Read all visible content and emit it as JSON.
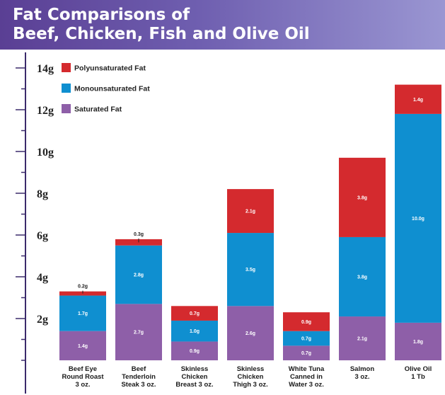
{
  "title_line1": "Fat Comparisons of",
  "title_line2": "Beef, Chicken, Fish and Olive Oil",
  "chart_data": {
    "type": "bar",
    "stacked": true,
    "ylim": [
      0,
      14
    ],
    "yticks": [
      "2g",
      "4g",
      "6g",
      "8g",
      "10g",
      "12g",
      "14g"
    ],
    "categories": [
      [
        "Beef Eye",
        "Round Roast",
        "3 oz."
      ],
      [
        "Beef",
        "Tenderloin",
        "Steak 3 oz."
      ],
      [
        "Skinless",
        "Chicken",
        "Breast 3 oz."
      ],
      [
        "Skinless",
        "Chicken",
        "Thigh 3 oz."
      ],
      [
        "White Tuna",
        "Canned in",
        "Water 3 oz."
      ],
      [
        "Salmon",
        "3 oz."
      ],
      [
        "Olive Oil",
        "1 Tb"
      ]
    ],
    "series": [
      {
        "name": "Saturated Fat",
        "color": "#8e5fa8",
        "values": [
          1.4,
          2.7,
          0.9,
          2.6,
          0.7,
          2.1,
          1.8
        ],
        "labels": [
          "1.4g",
          "2.7g",
          "0.9g",
          "2.6g",
          "0.7g",
          "2.1g",
          "1.8g"
        ]
      },
      {
        "name": "Monounsaturated Fat",
        "color": "#0f8fd0",
        "values": [
          1.7,
          2.8,
          1.0,
          3.5,
          0.7,
          3.8,
          10.0
        ],
        "labels": [
          "1.7g",
          "2.8g",
          "1.0g",
          "3.5g",
          "0.7g",
          "3.8g",
          "10.0g"
        ]
      },
      {
        "name": "Polyunsaturated Fat",
        "color": "#d42a2e",
        "values": [
          0.2,
          0.3,
          0.7,
          2.1,
          0.9,
          3.8,
          1.4
        ],
        "labels": [
          "0.2g",
          "0.3g",
          "0.7g",
          "2.1g",
          "0.9g",
          "3.8g",
          "1.4g"
        ]
      }
    ],
    "legend": [
      {
        "name": "Polyunsaturated Fat",
        "color": "#d42a2e"
      },
      {
        "name": "Monounsaturated Fat",
        "color": "#0f8fd0"
      },
      {
        "name": "Saturated Fat",
        "color": "#8e5fa8"
      }
    ],
    "legend_position": "top-left",
    "grid": false
  }
}
